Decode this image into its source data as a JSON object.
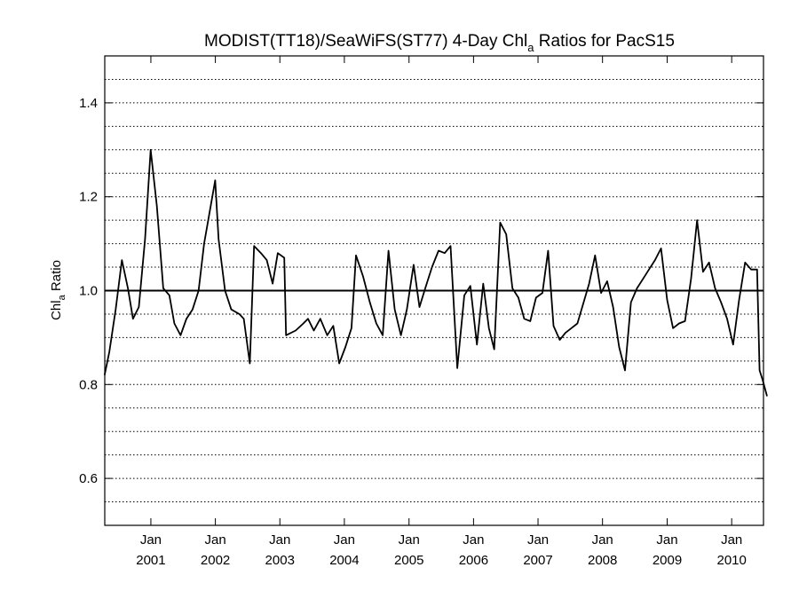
{
  "chart_data": {
    "type": "line",
    "title": {
      "prefix": "MODIST(TT18)/SeaWiFS(ST77) 4-Day Chl",
      "subscript": "a",
      "suffix": " Ratios for PacS15"
    },
    "ylabel": {
      "prefix": "Chl",
      "subscript": "a",
      "suffix": " Ratio"
    },
    "xlim": [
      "2000-04-15",
      "2010-06-30"
    ],
    "ylim": [
      0.5,
      1.5
    ],
    "y_ticks": [
      {
        "value": 0.6,
        "label": "0.6"
      },
      {
        "value": 0.8,
        "label": "0.8"
      },
      {
        "value": 1.0,
        "label": "1.0"
      },
      {
        "value": 1.2,
        "label": "1.2"
      },
      {
        "value": 1.4,
        "label": "1.4"
      }
    ],
    "y_gridlines": [
      0.55,
      0.6,
      0.65,
      0.7,
      0.75,
      0.8,
      0.85,
      0.9,
      0.95,
      1.05,
      1.1,
      1.15,
      1.2,
      1.25,
      1.3,
      1.35,
      1.4,
      1.45
    ],
    "gridlines": "horizontal dotted",
    "reference_line": 1.0,
    "x_ticks": [
      {
        "date": "2001-01-01",
        "label1": "Jan",
        "label2": "2001"
      },
      {
        "date": "2002-01-01",
        "label1": "Jan",
        "label2": "2002"
      },
      {
        "date": "2003-01-01",
        "label1": "Jan",
        "label2": "2003"
      },
      {
        "date": "2004-01-01",
        "label1": "Jan",
        "label2": "2004"
      },
      {
        "date": "2005-01-01",
        "label1": "Jan",
        "label2": "2005"
      },
      {
        "date": "2006-01-01",
        "label1": "Jan",
        "label2": "2006"
      },
      {
        "date": "2007-01-01",
        "label1": "Jan",
        "label2": "2007"
      },
      {
        "date": "2008-01-01",
        "label1": "Jan",
        "label2": "2008"
      },
      {
        "date": "2009-01-01",
        "label1": "Jan",
        "label2": "2009"
      },
      {
        "date": "2010-01-01",
        "label1": "Jan",
        "label2": "2010"
      }
    ],
    "series": [
      {
        "points": [
          [
            "2000-04-14",
            0.82
          ],
          [
            "2000-05-11",
            0.87
          ],
          [
            "2000-06-16",
            0.96
          ],
          [
            "2000-07-21",
            1.065
          ],
          [
            "2000-08-24",
            1.005
          ],
          [
            "2000-09-22",
            0.94
          ],
          [
            "2000-10-25",
            0.965
          ],
          [
            "2000-11-29",
            1.11
          ],
          [
            "2000-12-31",
            1.3
          ],
          [
            "2001-02-04",
            1.18
          ],
          [
            "2001-03-12",
            1.005
          ],
          [
            "2001-04-16",
            0.99
          ],
          [
            "2001-05-14",
            0.93
          ],
          [
            "2001-06-18",
            0.905
          ],
          [
            "2001-07-21",
            0.94
          ],
          [
            "2001-08-25",
            0.96
          ],
          [
            "2001-09-28",
            1.0
          ],
          [
            "2001-10-29",
            1.1
          ],
          [
            "2001-12-31",
            1.235
          ],
          [
            "2002-01-19",
            1.11
          ],
          [
            "2002-02-25",
            1.0
          ],
          [
            "2002-04-01",
            0.96
          ],
          [
            "2002-05-17",
            0.95
          ],
          [
            "2002-06-11",
            0.94
          ],
          [
            "2002-07-15",
            0.845
          ],
          [
            "2002-08-08",
            1.095
          ],
          [
            "2002-09-16",
            1.08
          ],
          [
            "2002-10-19",
            1.065
          ],
          [
            "2002-11-21",
            1.015
          ],
          [
            "2002-12-20",
            1.08
          ],
          [
            "2003-01-26",
            1.07
          ],
          [
            "2003-02-05",
            0.905
          ],
          [
            "2003-03-31",
            0.915
          ],
          [
            "2003-05-14",
            0.93
          ],
          [
            "2003-06-09",
            0.94
          ],
          [
            "2003-07-12",
            0.915
          ],
          [
            "2003-08-18",
            0.94
          ],
          [
            "2003-09-26",
            0.905
          ],
          [
            "2003-10-30",
            0.925
          ],
          [
            "2003-12-03",
            0.845
          ],
          [
            "2004-01-07",
            0.88
          ],
          [
            "2004-02-10",
            0.92
          ],
          [
            "2004-03-07",
            1.075
          ],
          [
            "2004-04-16",
            1.03
          ],
          [
            "2004-05-24",
            0.975
          ],
          [
            "2004-06-30",
            0.93
          ],
          [
            "2004-08-05",
            0.905
          ],
          [
            "2004-09-07",
            1.085
          ],
          [
            "2004-10-12",
            0.96
          ],
          [
            "2004-11-16",
            0.905
          ],
          [
            "2004-12-20",
            0.96
          ],
          [
            "2005-01-27",
            1.055
          ],
          [
            "2005-03-01",
            0.965
          ],
          [
            "2005-04-03",
            1.005
          ],
          [
            "2005-05-11",
            1.05
          ],
          [
            "2005-06-17",
            1.085
          ],
          [
            "2005-07-22",
            1.08
          ],
          [
            "2005-08-24",
            1.095
          ],
          [
            "2005-10-01",
            0.835
          ],
          [
            "2005-11-10",
            0.99
          ],
          [
            "2005-12-14",
            1.01
          ],
          [
            "2006-01-20",
            0.885
          ],
          [
            "2006-02-25",
            1.015
          ],
          [
            "2006-03-29",
            0.92
          ],
          [
            "2006-04-28",
            0.875
          ],
          [
            "2006-06-01",
            1.145
          ],
          [
            "2006-07-05",
            1.12
          ],
          [
            "2006-08-09",
            1.005
          ],
          [
            "2006-09-12",
            0.985
          ],
          [
            "2006-10-15",
            0.94
          ],
          [
            "2006-11-18",
            0.935
          ],
          [
            "2006-12-21",
            0.985
          ],
          [
            "2007-01-26",
            0.995
          ],
          [
            "2007-02-27",
            1.085
          ],
          [
            "2007-03-30",
            0.925
          ],
          [
            "2007-05-04",
            0.895
          ],
          [
            "2007-06-05",
            0.91
          ],
          [
            "2007-07-09",
            0.92
          ],
          [
            "2007-08-12",
            0.93
          ],
          [
            "2007-10-17",
            1.015
          ],
          [
            "2007-11-20",
            1.075
          ],
          [
            "2007-12-24",
            0.995
          ],
          [
            "2008-01-27",
            1.02
          ],
          [
            "2008-03-01",
            0.965
          ],
          [
            "2008-04-04",
            0.88
          ],
          [
            "2008-05-07",
            0.83
          ],
          [
            "2008-06-10",
            0.975
          ],
          [
            "2008-07-14",
            1.005
          ],
          [
            "2008-08-17",
            1.025
          ],
          [
            "2008-09-20",
            1.045
          ],
          [
            "2008-10-24",
            1.065
          ],
          [
            "2008-11-27",
            1.09
          ],
          [
            "2009-01-01",
            0.98
          ],
          [
            "2009-02-03",
            0.92
          ],
          [
            "2009-03-09",
            0.93
          ],
          [
            "2009-04-12",
            0.935
          ],
          [
            "2009-05-16",
            1.025
          ],
          [
            "2009-06-19",
            1.15
          ],
          [
            "2009-07-23",
            1.04
          ],
          [
            "2009-08-26",
            1.06
          ],
          [
            "2009-09-29",
            1.005
          ],
          [
            "2009-11-02",
            0.975
          ],
          [
            "2009-12-06",
            0.94
          ],
          [
            "2010-01-09",
            0.885
          ],
          [
            "2010-02-12",
            0.98
          ],
          [
            "2010-03-18",
            1.06
          ],
          [
            "2010-04-21",
            1.045
          ],
          [
            "2010-05-25",
            1.045
          ],
          [
            "2010-06-08",
            0.83
          ],
          [
            "2010-06-25",
            0.81
          ],
          [
            "2010-07-20",
            0.775
          ]
        ]
      }
    ]
  }
}
